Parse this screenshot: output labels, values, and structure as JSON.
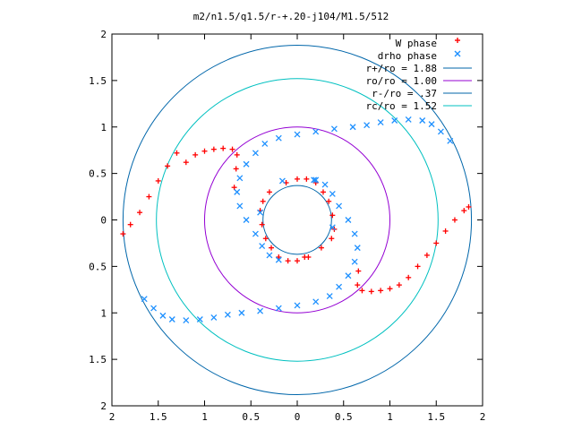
{
  "chart_data": {
    "type": "scatter",
    "title": "m2/n1.5/q1.5/r-+.20-j104/M1.5/512",
    "xlabel": "",
    "ylabel": "",
    "xlim": [
      -2,
      2
    ],
    "ylim": [
      -2,
      2
    ],
    "xticks": [
      -2,
      -1.5,
      -1,
      -0.5,
      0,
      0.5,
      1,
      1.5,
      2
    ],
    "yticks": [
      -2,
      -1.5,
      -1,
      -0.5,
      0,
      0.5,
      1,
      1.5,
      2
    ],
    "xtick_labels": [
      "2",
      "1.5",
      "1",
      "0.5",
      "0",
      "0.5",
      "1",
      "1.5",
      "2"
    ],
    "ytick_labels": [
      "2",
      "1.5",
      "1",
      "0.5",
      "0",
      "0.5",
      "1",
      "1.5",
      "2"
    ],
    "grid": false,
    "legend_position": "top-right",
    "series": [
      {
        "name": "W phase",
        "marker": "plus",
        "color": "#ff0000",
        "points": [
          [
            -1.88,
            -0.15
          ],
          [
            -1.8,
            -0.05
          ],
          [
            -1.7,
            0.08
          ],
          [
            -1.6,
            0.25
          ],
          [
            -1.5,
            0.42
          ],
          [
            -1.4,
            0.58
          ],
          [
            -1.3,
            0.72
          ],
          [
            -1.2,
            0.62
          ],
          [
            -1.1,
            0.7
          ],
          [
            -1.0,
            0.74
          ],
          [
            -0.9,
            0.76
          ],
          [
            -0.8,
            0.77
          ],
          [
            -0.7,
            0.76
          ],
          [
            -0.65,
            0.7
          ],
          [
            -0.66,
            0.55
          ],
          [
            -0.68,
            0.35
          ],
          [
            0.66,
            -0.55
          ],
          [
            0.65,
            -0.7
          ],
          [
            0.7,
            -0.76
          ],
          [
            0.8,
            -0.77
          ],
          [
            0.9,
            -0.76
          ],
          [
            1.0,
            -0.74
          ],
          [
            1.1,
            -0.7
          ],
          [
            1.2,
            -0.62
          ],
          [
            1.3,
            -0.5
          ],
          [
            1.4,
            -0.38
          ],
          [
            1.5,
            -0.25
          ],
          [
            1.6,
            -0.12
          ],
          [
            1.7,
            0.0
          ],
          [
            1.8,
            0.1
          ],
          [
            1.85,
            0.14
          ],
          [
            -0.12,
            0.4
          ],
          [
            0.0,
            0.44
          ],
          [
            0.1,
            0.44
          ],
          [
            0.2,
            0.4
          ],
          [
            0.28,
            0.3
          ],
          [
            0.34,
            0.2
          ],
          [
            0.38,
            0.05
          ],
          [
            0.4,
            -0.1
          ],
          [
            0.37,
            -0.2
          ],
          [
            0.12,
            -0.4
          ],
          [
            0.0,
            -0.44
          ],
          [
            -0.1,
            -0.44
          ],
          [
            -0.2,
            -0.4
          ],
          [
            -0.28,
            -0.3
          ],
          [
            -0.34,
            -0.2
          ],
          [
            -0.38,
            -0.05
          ],
          [
            -0.4,
            0.1
          ],
          [
            -0.37,
            0.2
          ],
          [
            -0.3,
            0.3
          ],
          [
            0.08,
            -0.4
          ],
          [
            0.26,
            -0.3
          ]
        ]
      },
      {
        "name": "drho phase",
        "marker": "x",
        "color": "#1e90ff",
        "points": [
          [
            1.65,
            0.85
          ],
          [
            1.55,
            0.95
          ],
          [
            1.45,
            1.03
          ],
          [
            1.35,
            1.07
          ],
          [
            1.2,
            1.08
          ],
          [
            1.05,
            1.07
          ],
          [
            0.9,
            1.05
          ],
          [
            0.75,
            1.02
          ],
          [
            0.6,
            1.0
          ],
          [
            0.4,
            0.98
          ],
          [
            0.2,
            0.95
          ],
          [
            0.0,
            0.92
          ],
          [
            -0.2,
            0.88
          ],
          [
            -0.35,
            0.82
          ],
          [
            -0.45,
            0.72
          ],
          [
            -0.55,
            0.6
          ],
          [
            -0.62,
            0.45
          ],
          [
            -0.65,
            0.3
          ],
          [
            -0.62,
            0.15
          ],
          [
            -0.55,
            0.0
          ],
          [
            -0.45,
            -0.15
          ],
          [
            -0.38,
            -0.28
          ],
          [
            -0.3,
            -0.38
          ],
          [
            -0.2,
            -0.43
          ],
          [
            -1.65,
            -0.85
          ],
          [
            -1.55,
            -0.95
          ],
          [
            -1.45,
            -1.03
          ],
          [
            -1.35,
            -1.07
          ],
          [
            -1.2,
            -1.08
          ],
          [
            -1.05,
            -1.07
          ],
          [
            -0.9,
            -1.05
          ],
          [
            -0.75,
            -1.02
          ],
          [
            -0.6,
            -1.0
          ],
          [
            -0.4,
            -0.98
          ],
          [
            -0.2,
            -0.95
          ],
          [
            0.0,
            -0.92
          ],
          [
            0.2,
            -0.88
          ],
          [
            0.35,
            -0.82
          ],
          [
            0.45,
            -0.72
          ],
          [
            0.55,
            -0.6
          ],
          [
            0.62,
            -0.45
          ],
          [
            0.65,
            -0.3
          ],
          [
            0.62,
            -0.15
          ],
          [
            0.55,
            0.0
          ],
          [
            0.45,
            0.15
          ],
          [
            0.38,
            0.28
          ],
          [
            0.3,
            0.38
          ],
          [
            0.2,
            0.43
          ],
          [
            -0.4,
            0.08
          ],
          [
            0.38,
            -0.08
          ],
          [
            -0.16,
            0.42
          ],
          [
            0.18,
            0.43
          ]
        ]
      }
    ],
    "circles": [
      {
        "name": "r+/ro = 1.88",
        "radius": 1.88,
        "color": "#0066aa"
      },
      {
        "name": "ro/ro = 1.00",
        "radius": 1.0,
        "color": "#9400d3"
      },
      {
        "name": "r-/ro = .37",
        "radius": 0.37,
        "color": "#0066aa"
      },
      {
        "name": "rc/ro = 1.52",
        "radius": 1.52,
        "color": "#00c0c0"
      }
    ]
  }
}
